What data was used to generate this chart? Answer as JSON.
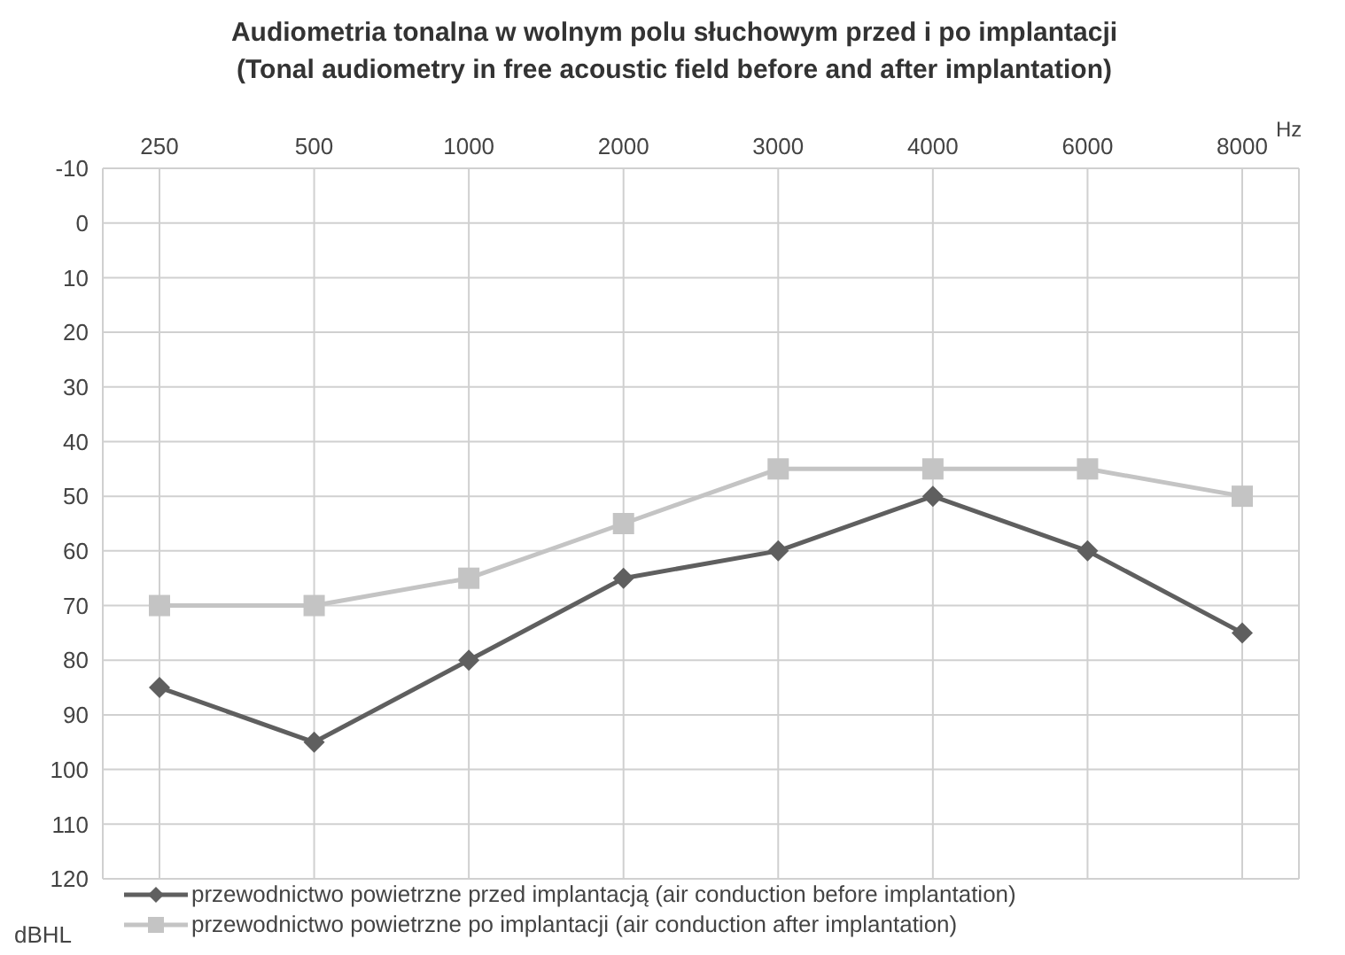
{
  "chart_data": {
    "type": "line",
    "title": "Audiometria tonalna w wolnym polu słuchowym przed i po implantacji",
    "subtitle": "(Tonal audiometry in free acoustic field before and after implantation)",
    "xlabel": "Hz",
    "ylabel": "dBHL",
    "categories": [
      "250",
      "500",
      "1000",
      "2000",
      "3000",
      "4000",
      "6000",
      "8000"
    ],
    "series": [
      {
        "name": "przewodnictwo powietrzne przed implantacją (air conduction before implantation)",
        "color": "#5f5f5f",
        "marker": "diamond",
        "values": [
          85,
          95,
          80,
          65,
          60,
          50,
          60,
          75
        ]
      },
      {
        "name": "przewodnictwo powietrzne po implantacji (air conduction after implantation)",
        "color": "#c4c4c4",
        "marker": "square",
        "values": [
          70,
          70,
          65,
          55,
          45,
          45,
          45,
          50
        ]
      }
    ],
    "ylim": [
      120,
      -10
    ],
    "yticks": [
      -10,
      0,
      10,
      20,
      30,
      40,
      50,
      60,
      70,
      80,
      90,
      100,
      110,
      120
    ],
    "grid": true,
    "legend": "bottom"
  }
}
